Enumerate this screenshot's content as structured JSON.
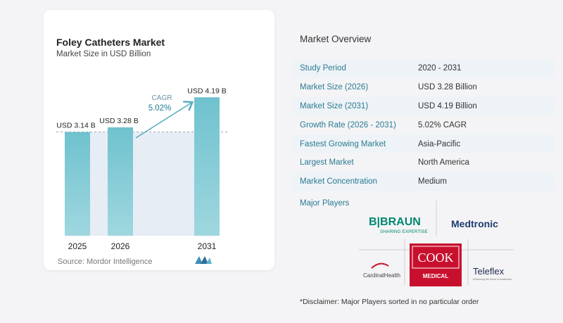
{
  "chart_data": {
    "type": "bar",
    "title": "Foley Catheters Market",
    "subtitle": "Market Size in USD Billion",
    "categories": [
      "2025",
      "2026",
      "2031"
    ],
    "values": [
      3.14,
      3.28,
      4.19
    ],
    "data_labels": [
      "USD 3.14 B",
      "USD 3.28 B",
      "USD 4.19 B"
    ],
    "cagr_label": "CAGR",
    "cagr_value": "5.02%",
    "ylim": [
      0,
      4.6
    ],
    "colors": {
      "bar": "#6fc2ce",
      "bar_gradient_end": "#9fd7df",
      "shade": "#e6edf5",
      "arrow": "#5aaec0",
      "label": "#1f7d93"
    },
    "grid": false
  },
  "source": "Source:  Mordor Intelligence",
  "overview": {
    "title": "Market Overview",
    "rows": [
      {
        "key": "Study Period",
        "value": "2020 - 2031"
      },
      {
        "key": "Market Size (2026)",
        "value": "USD 3.28 Billion"
      },
      {
        "key": "Market Size (2031)",
        "value": "USD 4.19 Billion"
      },
      {
        "key": "Growth Rate (2026 - 2031)",
        "value": "5.02% CAGR"
      },
      {
        "key": "Fastest Growing Market",
        "value": "Asia-Pacific"
      },
      {
        "key": "Largest Market",
        "value": "North America"
      },
      {
        "key": "Market Concentration",
        "value": "Medium"
      }
    ],
    "players_label": "Major Players",
    "players": {
      "bbraun": "B|BRAUN",
      "bbraun_tag": "SHARING EXPERTISE",
      "medtronic": "Medtronic",
      "cook": "COOK",
      "cook_sub": "MEDICAL",
      "cardinal": "CardinalHealth",
      "teleflex": "Teleflex",
      "teleflex_tag": "Enhancing the future of healthcare"
    },
    "disclaimer": "*Disclaimer: Major Players sorted in no particular order"
  }
}
